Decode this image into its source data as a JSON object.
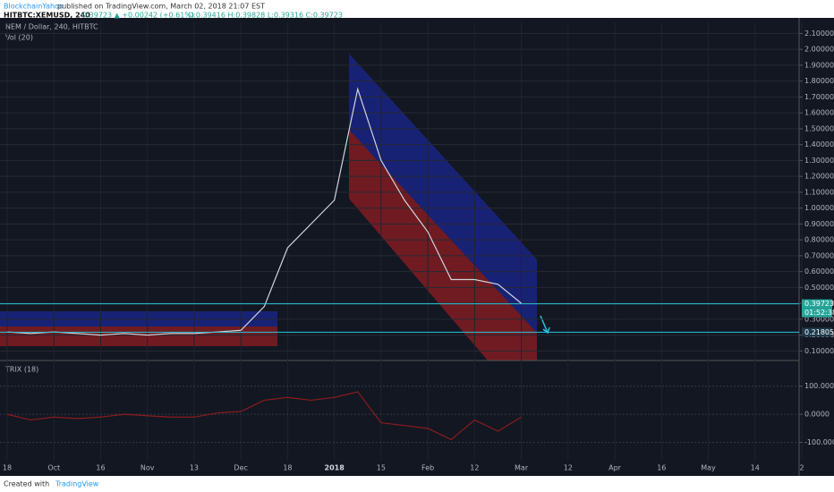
{
  "header": {
    "publisher": "BlockchainYahoo",
    "published": "published on TradingView.com, March 02, 2018 21:07 EST",
    "symbol": "HITBTC:XEMUSD, 240",
    "last": "0.39723 ▲ +0.00242 (+0.61%)",
    "ohlc": "O:0.39416 H:0.39828 L:0.39316 C:0.39723"
  },
  "footer": {
    "created": "Created with",
    "brand": "TradingView"
  },
  "chart_data": [
    {
      "type": "line",
      "title": "NEM / Dollar, 240, HITBTC",
      "indicator": "Vol (20)",
      "color": "#d1d4dc",
      "grid": true,
      "categories": [
        "18",
        null,
        "Oct",
        null,
        "16",
        null,
        "Nov",
        null,
        "13",
        null,
        "Dec",
        null,
        "18",
        null,
        "2018",
        null,
        "15",
        null,
        "Feb",
        null,
        "12",
        null,
        "Mar",
        null,
        "12",
        null,
        "Apr",
        null,
        "16",
        null,
        "May",
        null,
        "14",
        null,
        "2"
      ],
      "values": [
        0.22,
        0.21,
        0.22,
        0.21,
        0.2,
        0.21,
        0.2,
        0.21,
        0.21,
        0.22,
        0.23,
        0.38,
        0.75,
        0.9,
        1.05,
        1.75,
        1.3,
        1.05,
        0.85,
        0.55,
        0.55,
        0.52,
        0.4,
        null,
        null,
        null,
        null,
        null,
        null,
        null,
        null,
        null,
        null,
        null,
        null
      ],
      "ylim": [
        0.04,
        2.17
      ],
      "yticks": [
        {
          "value": 0.1,
          "label": "0.10000"
        },
        {
          "value": 0.2,
          "label": "0.20000"
        },
        {
          "value": 0.3,
          "label": "0.30000"
        },
        {
          "value": 0.4,
          "label": "0.40000"
        },
        {
          "value": 0.5,
          "label": "0.50000"
        },
        {
          "value": 0.6,
          "label": "0.60000"
        },
        {
          "value": 0.7,
          "label": "0.70000"
        },
        {
          "value": 0.8,
          "label": "0.80000"
        },
        {
          "value": 0.9,
          "label": "0.90000"
        },
        {
          "value": 1.0,
          "label": "1.00000"
        },
        {
          "value": 1.1,
          "label": "1.10000"
        },
        {
          "value": 1.2,
          "label": "1.20000"
        },
        {
          "value": 1.3,
          "label": "1.30000"
        },
        {
          "value": 1.4,
          "label": "1.40000"
        },
        {
          "value": 1.5,
          "label": "1.50000"
        },
        {
          "value": 1.6,
          "label": "1.60000"
        },
        {
          "value": 1.7,
          "label": "1.70000"
        },
        {
          "value": 1.8,
          "label": "1.80000"
        },
        {
          "value": 1.9,
          "label": "1.90000"
        },
        {
          "value": 2.0,
          "label": "2.00000"
        },
        {
          "value": 2.1,
          "label": "2.10000"
        }
      ],
      "price_lines": [
        {
          "value": 0.39723,
          "label": "0.39723"
        },
        {
          "value": 0.21805,
          "label": "0.21805"
        }
      ],
      "countdown": "01:52:38"
    },
    {
      "type": "line",
      "title": "TRIX (18)",
      "color": "#8b1c1c",
      "grid": true,
      "values": [
        0,
        -20,
        -10,
        -15,
        -10,
        0,
        -5,
        -10,
        -10,
        5,
        10,
        50,
        60,
        50,
        60,
        80,
        -30,
        -40,
        -50,
        -90,
        -20,
        -60,
        -10,
        null,
        null,
        null,
        null,
        null,
        null,
        null,
        null,
        null,
        null,
        null,
        null
      ],
      "ylim": [
        -165,
        185
      ],
      "yticks": [
        {
          "value": 100,
          "label": "100.0000"
        },
        {
          "value": 0,
          "label": "0.0000"
        },
        {
          "value": -100,
          "label": "-100.0000"
        }
      ]
    }
  ]
}
